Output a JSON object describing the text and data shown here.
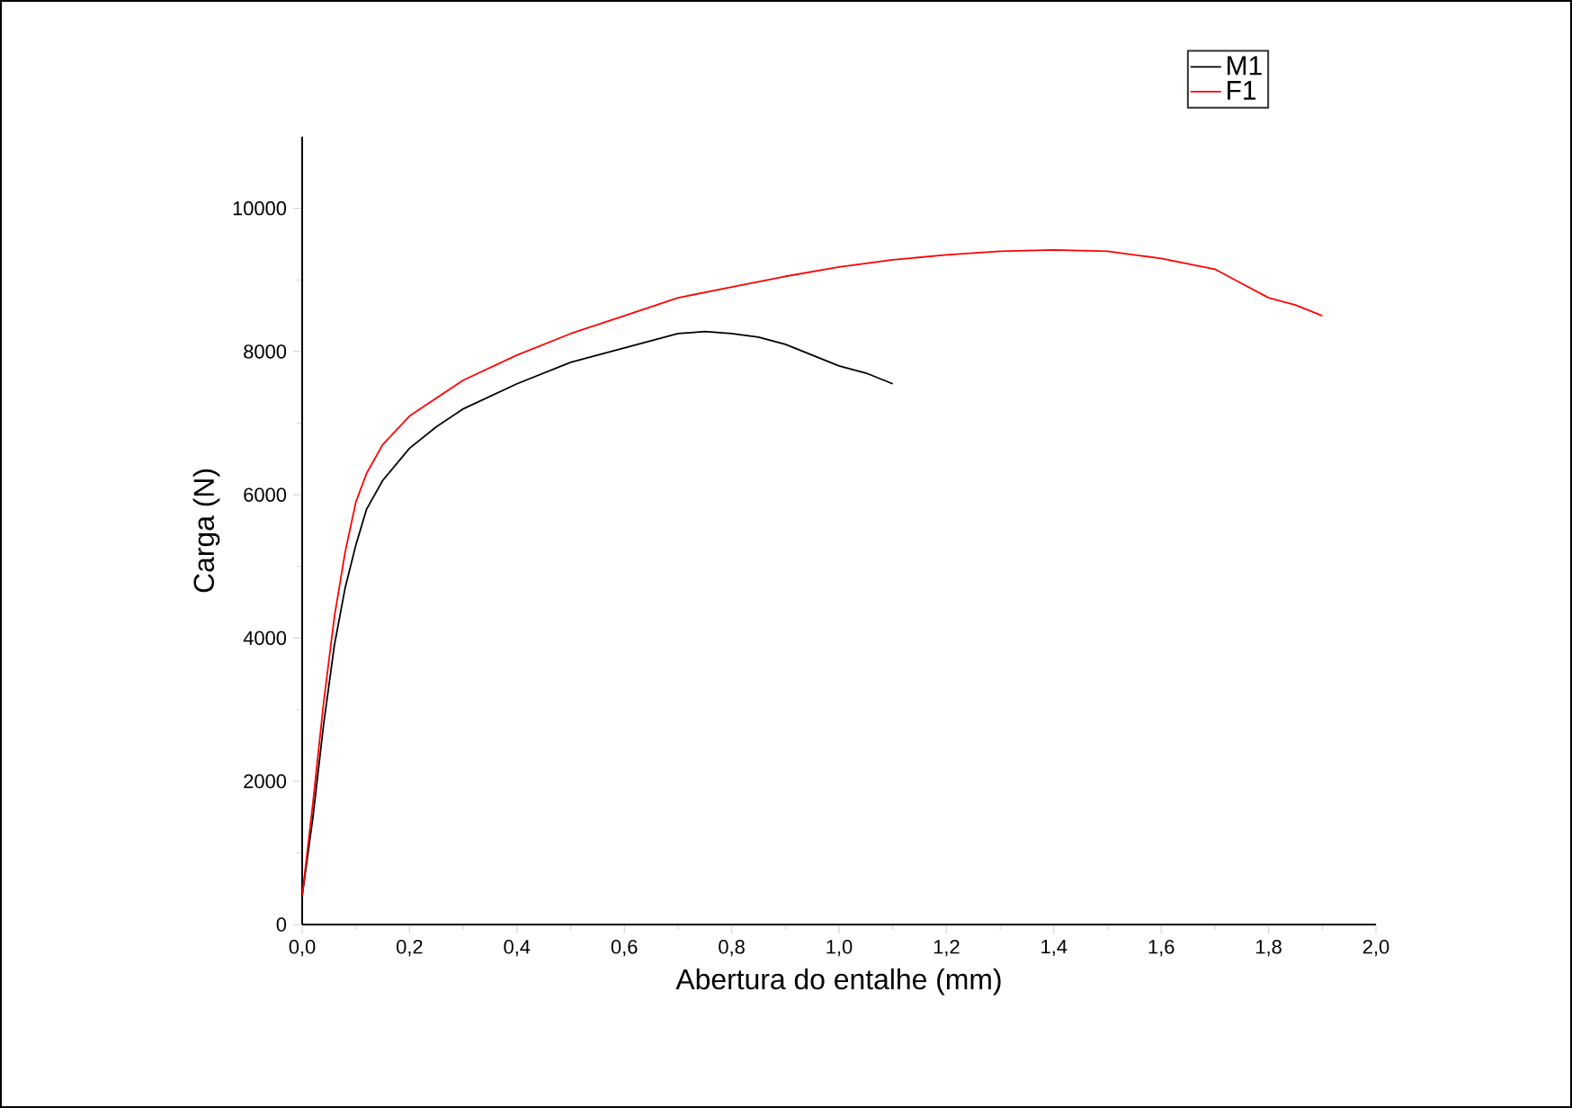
{
  "chart_data": {
    "type": "line",
    "xlabel": "Abertura do entalhe (mm)",
    "ylabel": "Carga (N)",
    "xlim": [
      0,
      2.0
    ],
    "ylim": [
      0,
      11000
    ],
    "xticks": [
      {
        "value": 0,
        "label": "0,0"
      },
      {
        "value": 0.2,
        "label": "0,2"
      },
      {
        "value": 0.4,
        "label": "0,4"
      },
      {
        "value": 0.6,
        "label": "0,6"
      },
      {
        "value": 0.8,
        "label": "0,8"
      },
      {
        "value": 1.0,
        "label": "1,0"
      },
      {
        "value": 1.2,
        "label": "1,2"
      },
      {
        "value": 1.4,
        "label": "1,4"
      },
      {
        "value": 1.6,
        "label": "1,6"
      },
      {
        "value": 1.8,
        "label": "1,8"
      },
      {
        "value": 2.0,
        "label": "2,0"
      }
    ],
    "yticks": [
      0,
      2000,
      4000,
      6000,
      8000,
      10000
    ],
    "legend": "top right",
    "grid": false,
    "line_style": "solid",
    "series": [
      {
        "name": "M1",
        "color": "#000000",
        "x": [
          0,
          0.02,
          0.04,
          0.06,
          0.08,
          0.1,
          0.12,
          0.15,
          0.2,
          0.25,
          0.3,
          0.4,
          0.5,
          0.6,
          0.7,
          0.75,
          0.8,
          0.85,
          0.9,
          0.95,
          1.0,
          1.05,
          1.1
        ],
        "values": [
          400,
          1500,
          2800,
          3900,
          4700,
          5300,
          5800,
          6200,
          6650,
          6950,
          7200,
          7550,
          7850,
          8050,
          8250,
          8280,
          8250,
          8200,
          8100,
          7950,
          7800,
          7700,
          7550
        ]
      },
      {
        "name": "F1",
        "color": "#ff0000",
        "x": [
          0,
          0.02,
          0.04,
          0.06,
          0.08,
          0.1,
          0.12,
          0.15,
          0.2,
          0.3,
          0.4,
          0.5,
          0.6,
          0.7,
          0.8,
          0.9,
          1.0,
          1.1,
          1.2,
          1.3,
          1.4,
          1.5,
          1.6,
          1.7,
          1.75,
          1.8,
          1.85,
          1.9
        ],
        "values": [
          400,
          1700,
          3100,
          4300,
          5200,
          5900,
          6300,
          6700,
          7100,
          7600,
          7950,
          8250,
          8500,
          8750,
          8900,
          9050,
          9180,
          9280,
          9350,
          9400,
          9420,
          9400,
          9300,
          9150,
          8950,
          8750,
          8650,
          8500
        ]
      }
    ]
  }
}
